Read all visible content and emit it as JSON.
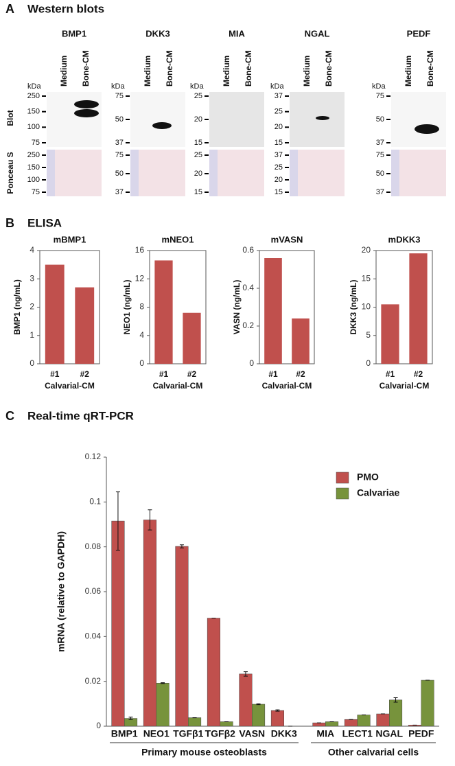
{
  "western_blots": {
    "letter": "A",
    "title": "Western blots",
    "kda": "kDa",
    "lanes": [
      "Medium",
      "Bone-CM"
    ],
    "row_labels": [
      "Blot",
      "Ponceau S"
    ],
    "blots": [
      {
        "name": "BMP1",
        "blot_markers": [
          "250",
          "150",
          "100",
          "75"
        ],
        "ponceau_markers": [
          "250",
          "150",
          "100",
          "75"
        ]
      },
      {
        "name": "DKK3",
        "blot_markers": [
          "75",
          "50",
          "37"
        ],
        "ponceau_markers": [
          "75",
          "50",
          "37"
        ]
      },
      {
        "name": "MIA",
        "blot_markers": [
          "25",
          "20",
          "15"
        ],
        "ponceau_markers": [
          "25",
          "20",
          "15"
        ]
      },
      {
        "name": "NGAL",
        "blot_markers": [
          "37",
          "25",
          "20",
          "15"
        ],
        "ponceau_markers": [
          "37",
          "25",
          "20",
          "15"
        ]
      },
      {
        "name": "PEDF",
        "blot_markers": [
          "75",
          "50",
          "37"
        ],
        "ponceau_markers": [
          "75",
          "50",
          "37"
        ]
      }
    ]
  },
  "elisa": {
    "letter": "B",
    "title": "ELISA"
  },
  "qpcr": {
    "letter": "C",
    "title": "Real-time qRT-PCR"
  },
  "chart_data": [
    {
      "type": "bar",
      "title": "mBMP1",
      "y_label": "BMP1 (ng/mL)",
      "x_label": "Calvarial-CM",
      "categories": [
        "#1",
        "#2"
      ],
      "values": [
        3.5,
        2.7
      ],
      "color": "#c0504d",
      "ylim": [
        0,
        4
      ],
      "yticks": [
        0,
        1,
        2,
        3,
        4
      ],
      "frame": true
    },
    {
      "type": "bar",
      "title": "mNEO1",
      "y_label": "NEO1 (ng/mL)",
      "x_label": "Calvarial-CM",
      "categories": [
        "#1",
        "#2"
      ],
      "values": [
        14.6,
        7.2
      ],
      "color": "#c0504d",
      "ylim": [
        0,
        16
      ],
      "yticks": [
        0,
        4,
        8,
        12,
        16
      ],
      "frame": true
    },
    {
      "type": "bar",
      "title": "mVASN",
      "y_label": "VASN (ng/mL)",
      "x_label": "Calvarial-CM",
      "categories": [
        "#1",
        "#2"
      ],
      "values": [
        0.56,
        0.24
      ],
      "color": "#c0504d",
      "ylim": [
        0,
        0.6
      ],
      "yticks": [
        0,
        0.2,
        0.4,
        0.6
      ],
      "frame": true
    },
    {
      "type": "bar",
      "title": "mDKK3",
      "y_label": "DKK3 (ng/mL)",
      "x_label": "Calvarial-CM",
      "categories": [
        "#1",
        "#2"
      ],
      "values": [
        10.5,
        19.5
      ],
      "color": "#c0504d",
      "ylim": [
        0,
        20
      ],
      "yticks": [
        0,
        5,
        10,
        15,
        20
      ],
      "frame": true
    },
    {
      "type": "grouped_bar",
      "y_label": "mRNA (relative to GAPDH)",
      "categories": [
        "BMP1",
        "NEO1",
        "TGFβ1",
        "TGFβ2",
        "VASN",
        "DKK3",
        "MIA",
        "LECT1",
        "NGAL",
        "PEDF"
      ],
      "groups": [
        {
          "label": "Primary mouse osteoblasts",
          "size": 6
        },
        {
          "label": "Other calvarial cells",
          "size": 4
        }
      ],
      "series": [
        {
          "name": "PMO",
          "color": "#c0504d",
          "values": [
            0.0915,
            0.092,
            0.0802,
            0.0482,
            0.0233,
            0.007,
            0.0015,
            0.003,
            0.0055,
            0.0005
          ],
          "errors": [
            0.013,
            0.0045,
            0.0007,
            0,
            0.001,
            0.0003,
            0,
            0,
            0,
            0
          ]
        },
        {
          "name": "Calvariae",
          "color": "#77933c",
          "values": [
            0.0035,
            0.0192,
            0.0038,
            0.002,
            0.0098,
            0,
            0.002,
            0.005,
            0.0117,
            0.0205
          ],
          "errors": [
            0.0005,
            0.0002,
            0,
            0,
            0.0002,
            0,
            0,
            0,
            0.001,
            0
          ]
        }
      ],
      "ylim": [
        0,
        0.12
      ],
      "yticks": [
        0,
        0.02,
        0.04,
        0.06,
        0.08,
        0.1,
        0.12
      ],
      "legend": "top-right"
    }
  ]
}
